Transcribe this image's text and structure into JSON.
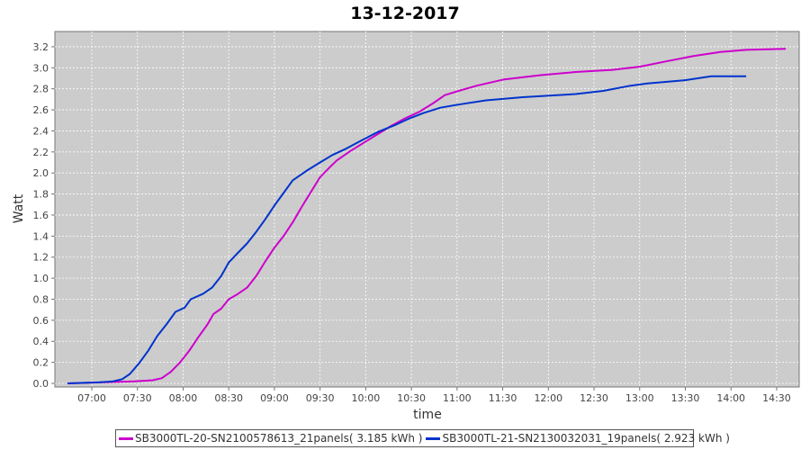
{
  "chart_data": {
    "type": "line",
    "title": "13-12-2017",
    "xlabel": "time",
    "ylabel": "Watt",
    "xlim": [
      "06:35",
      "14:45"
    ],
    "ylim": [
      0,
      3.3
    ],
    "x_ticks": [
      "07:00",
      "07:30",
      "08:00",
      "08:30",
      "09:00",
      "09:30",
      "10:00",
      "10:30",
      "11:00",
      "11:30",
      "12:00",
      "12:30",
      "13:00",
      "13:30",
      "14:00",
      "14:30"
    ],
    "y_ticks": [
      "0.0",
      "0.2",
      "0.4",
      "0.6",
      "0.8",
      "1.0",
      "1.2",
      "1.4",
      "1.6",
      "1.8",
      "2.0",
      "2.2",
      "2.4",
      "2.6",
      "2.8",
      "3.0",
      "3.2"
    ],
    "grid": true,
    "legend_position": "bottom",
    "background": "#cccccc",
    "series": [
      {
        "name": "SB3000TL-20-SN2100578613_21panels( 3.185 kWh )",
        "color": "#cc00cc",
        "x": [
          "06:44",
          "07:28",
          "07:40",
          "07:46",
          "07:52",
          "07:58",
          "08:04",
          "08:10",
          "08:16",
          "08:20",
          "08:25",
          "08:30",
          "08:36",
          "08:42",
          "08:48",
          "08:54",
          "09:00",
          "09:06",
          "09:12",
          "09:18",
          "09:24",
          "09:30",
          "09:36",
          "09:41",
          "09:50",
          "09:59",
          "10:08",
          "10:17",
          "10:26",
          "10:35",
          "10:44",
          "10:52",
          "11:01",
          "11:13",
          "11:31",
          "11:55",
          "12:18",
          "12:42",
          "13:00",
          "13:17",
          "13:35",
          "13:53",
          "14:10",
          "14:36"
        ],
        "y": [
          0,
          0.02,
          0.03,
          0.05,
          0.11,
          0.2,
          0.31,
          0.44,
          0.56,
          0.66,
          0.71,
          0.8,
          0.85,
          0.91,
          1.02,
          1.16,
          1.29,
          1.4,
          1.53,
          1.68,
          1.82,
          1.96,
          2.05,
          2.12,
          2.21,
          2.29,
          2.37,
          2.45,
          2.52,
          2.58,
          2.66,
          2.74,
          2.78,
          2.83,
          2.89,
          2.93,
          2.96,
          2.98,
          3.01,
          3.06,
          3.11,
          3.15,
          3.17,
          3.18
        ]
      },
      {
        "name": "SB3000TL-21-SN2130032031_19panels( 2.923 kWh )",
        "color": "#0033cc",
        "x": [
          "06:44",
          "07:05",
          "07:14",
          "07:20",
          "07:25",
          "07:31",
          "07:37",
          "07:43",
          "07:49",
          "07:55",
          "08:01",
          "08:05",
          "08:13",
          "08:19",
          "08:25",
          "08:30",
          "08:36",
          "08:42",
          "08:48",
          "08:54",
          "09:00",
          "09:06",
          "09:12",
          "09:21",
          "09:30",
          "09:38",
          "09:47",
          "09:56",
          "10:08",
          "10:20",
          "10:29",
          "10:38",
          "10:49",
          "11:01",
          "11:19",
          "11:43",
          "12:18",
          "12:36",
          "12:54",
          "13:05",
          "13:29",
          "13:47",
          "14:10"
        ],
        "y": [
          0,
          0.01,
          0.02,
          0.04,
          0.09,
          0.19,
          0.31,
          0.45,
          0.56,
          0.68,
          0.72,
          0.8,
          0.85,
          0.91,
          1.02,
          1.15,
          1.24,
          1.33,
          1.44,
          1.56,
          1.69,
          1.81,
          1.93,
          2.02,
          2.1,
          2.17,
          2.23,
          2.3,
          2.39,
          2.46,
          2.52,
          2.57,
          2.62,
          2.65,
          2.69,
          2.72,
          2.75,
          2.78,
          2.83,
          2.85,
          2.88,
          2.92,
          2.92
        ]
      }
    ]
  }
}
